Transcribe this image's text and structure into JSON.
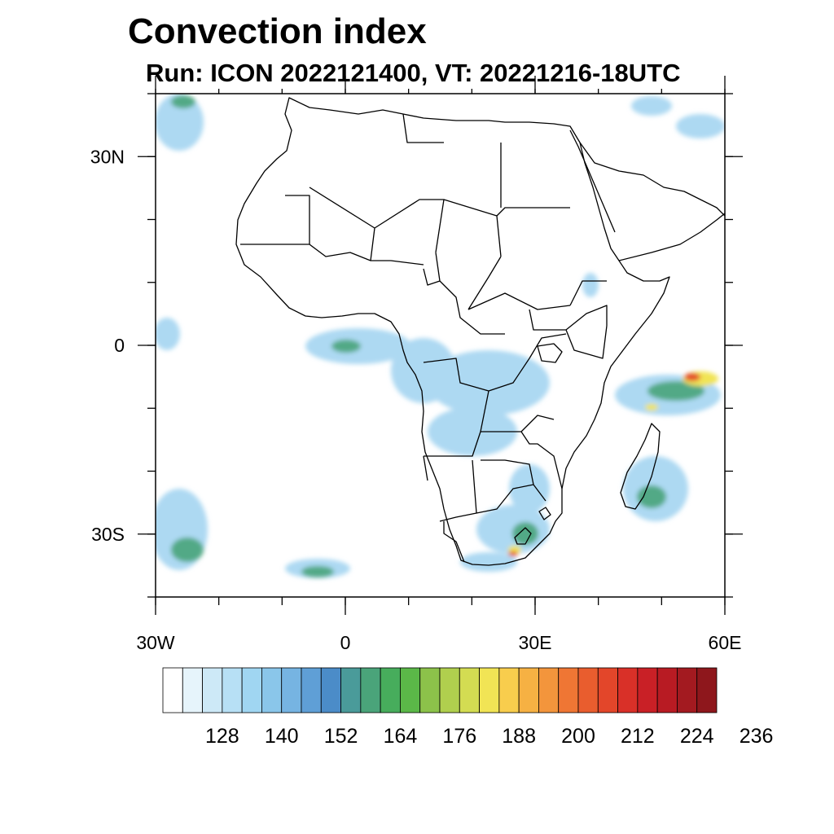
{
  "title": "Convection index",
  "subtitle": "Run: ICON 2022121400,  VT: 20221216-18UTC",
  "map": {
    "lon_range": [
      -30,
      60
    ],
    "lat_range": [
      -40,
      40
    ],
    "x_ticks": [
      {
        "lon": -30,
        "label": "30W"
      },
      {
        "lon": 0,
        "label": "0"
      },
      {
        "lon": 30,
        "label": "30E"
      },
      {
        "lon": 60,
        "label": "60E"
      }
    ],
    "y_ticks": [
      {
        "lat": 30,
        "label": "30N"
      },
      {
        "lat": 0,
        "label": "0"
      },
      {
        "lat": -30,
        "label": "30S"
      }
    ]
  },
  "colorbar": {
    "colors": [
      "#ffffff",
      "#e6f4fb",
      "#cde9f7",
      "#b7e0f5",
      "#a0d6f2",
      "#8ac6ea",
      "#76b4e2",
      "#5f9fd6",
      "#4b8cc8",
      "#4a9b9a",
      "#4aa47a",
      "#47ad5c",
      "#5bb848",
      "#8cc24a",
      "#b0cf4e",
      "#d3dc52",
      "#f1e455",
      "#f8cd4d",
      "#f6b143",
      "#f3953c",
      "#ef7634",
      "#e95d2e",
      "#e3462a",
      "#d93028",
      "#c92026",
      "#b81b23",
      "#a31a20",
      "#8e171c"
    ],
    "labels": [
      "128",
      "140",
      "152",
      "164",
      "176",
      "188",
      "200",
      "212",
      "224",
      "236"
    ]
  }
}
